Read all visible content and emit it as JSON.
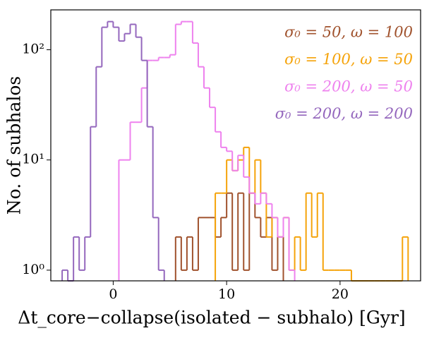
{
  "chart_data": {
    "type": "histogram",
    "x_label": "Δt_core−collapse(isolated − subhalo) [Gyr]",
    "y_label": "No. of subhalos",
    "log_y": true,
    "legend": "upper right",
    "xlim": [
      -5.5,
      27.1
    ],
    "ylim": [
      0.8,
      230
    ],
    "xticks": [
      0,
      10,
      20
    ],
    "yticks": [
      {
        "value": 1,
        "label": "10⁰"
      },
      {
        "value": 10,
        "label": "10¹"
      },
      {
        "value": 100,
        "label": "10²"
      }
    ],
    "series": [
      {
        "name": "σ₀ = 50, ω = 100",
        "color": "#a0522d",
        "bins": [
          5.5,
          6,
          6.5,
          7,
          7.5,
          8,
          8.5,
          9,
          9.5,
          10,
          10.5,
          11,
          11.5,
          12,
          12.5,
          13,
          13.5,
          14,
          14.5,
          15
        ],
        "values": [
          2,
          1,
          2,
          1,
          3,
          3,
          3,
          2,
          3,
          5,
          1,
          5,
          1,
          5,
          3,
          2,
          3,
          1,
          2
        ]
      },
      {
        "name": "σ₀ = 100, ω = 50",
        "color": "#f5a30a",
        "bins": [
          9,
          9.5,
          10,
          10.5,
          11,
          11.5,
          12,
          12.5,
          13,
          13.5,
          14,
          14.5,
          15,
          15.5,
          16,
          16.5,
          17,
          17.5,
          18,
          18.5,
          19,
          19.5,
          20,
          20.5,
          21,
          21.5,
          22,
          22.5,
          23,
          23.5,
          24,
          24.5,
          25,
          25.5,
          26
        ],
        "values": [
          5,
          5,
          10,
          8,
          10,
          13,
          5,
          10,
          5,
          2,
          3,
          2,
          3,
          1,
          2,
          1,
          5,
          2,
          5,
          1,
          1,
          1,
          1,
          1,
          0,
          0,
          0,
          0,
          0,
          0,
          0,
          0,
          0,
          2
        ]
      },
      {
        "name": "σ₀ = 200, ω = 50",
        "color": "#ee82ee",
        "bins": [
          0.5,
          1,
          1.5,
          2,
          2.5,
          3,
          3.5,
          4,
          4.5,
          5,
          5.5,
          6,
          6.5,
          7,
          7.5,
          8,
          8.5,
          9,
          9.5,
          10,
          10.5,
          11,
          11.5,
          12,
          12.5,
          13,
          13.5,
          14,
          14.5,
          15,
          15.5,
          16
        ],
        "values": [
          10,
          10,
          22,
          22,
          45,
          80,
          80,
          85,
          85,
          90,
          170,
          180,
          180,
          115,
          70,
          45,
          30,
          18,
          13,
          12,
          8,
          11,
          7,
          5,
          4,
          5,
          4,
          3,
          2,
          3,
          1
        ]
      },
      {
        "name": "σ₀ = 200, ω = 200",
        "color": "#9467bd",
        "bins": [
          -4.5,
          -4,
          -3.5,
          -3,
          -2.5,
          -2,
          -1.5,
          -1,
          -0.5,
          0,
          0.5,
          1,
          1.5,
          2,
          2.5,
          3,
          3.5,
          4,
          4.5
        ],
        "values": [
          1,
          0,
          2,
          1,
          2,
          20,
          70,
          160,
          180,
          160,
          120,
          140,
          170,
          130,
          80,
          20,
          3,
          1
        ]
      }
    ]
  }
}
